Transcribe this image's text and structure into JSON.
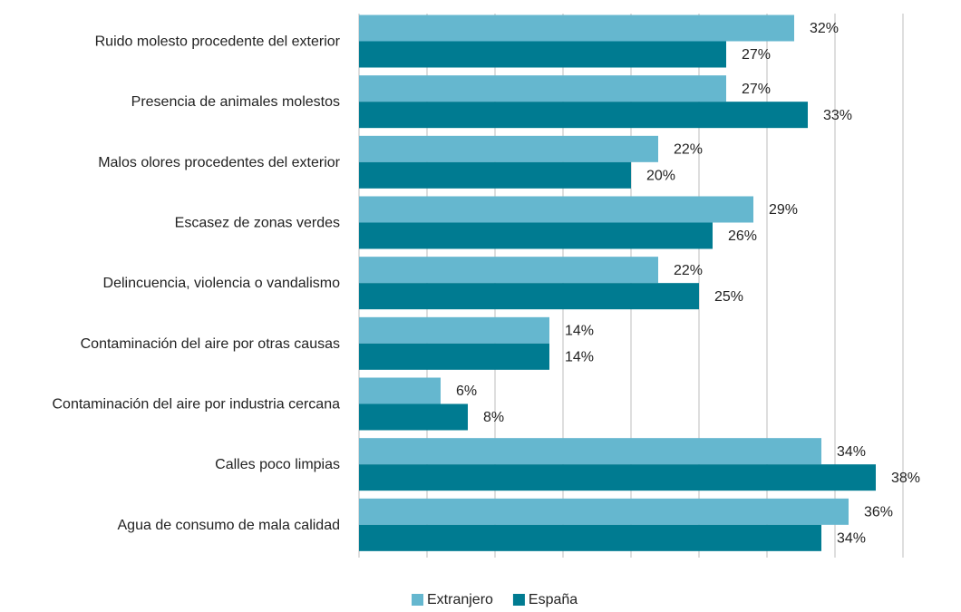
{
  "chart_data": {
    "type": "hbar",
    "categories": [
      "Ruido molesto procedente del exterior",
      "Presencia de animales molestos",
      "Malos olores procedentes del exterior",
      "Escasez de zonas verdes",
      "Delincuencia, violencia o vandalismo",
      "Contaminación del aire por otras causas",
      "Contaminación del aire por industria cercana",
      "Calles poco limpias",
      "Agua de consumo de mala calidad"
    ],
    "series": [
      {
        "name": "Extranjero",
        "color": "#65b7cf",
        "values": [
          32,
          27,
          22,
          29,
          22,
          14,
          6,
          34,
          36
        ],
        "value_labels": [
          "32%",
          "27%",
          "22%",
          "29%",
          "22%",
          "14%",
          "6%",
          "34%",
          "36%"
        ]
      },
      {
        "name": "España",
        "color": "#007b91",
        "values": [
          27,
          33,
          20,
          26,
          25,
          14,
          8,
          38,
          34
        ],
        "value_labels": [
          "27%",
          "33%",
          "20%",
          "26%",
          "25%",
          "14%",
          "8%",
          "38%",
          "34%"
        ]
      }
    ],
    "xlim": [
      0,
      40
    ],
    "xticks": [
      0,
      5,
      10,
      15,
      20,
      25,
      30,
      35,
      40
    ],
    "grid": true,
    "legend": "bottom"
  }
}
